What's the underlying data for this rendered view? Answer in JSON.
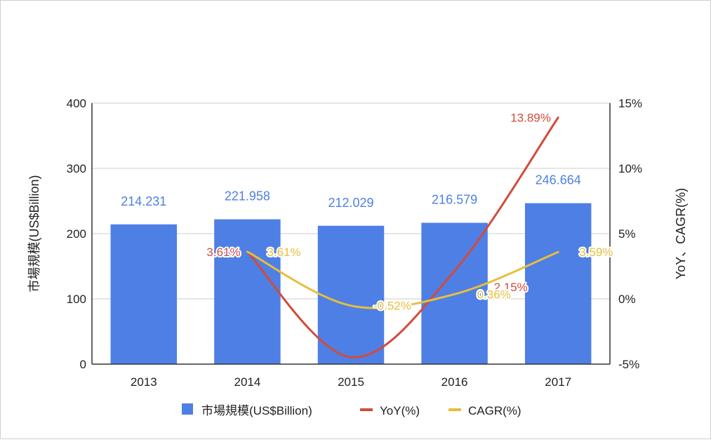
{
  "chart_data": {
    "type": "bar",
    "title": "",
    "categories": [
      "2013",
      "2014",
      "2015",
      "2016",
      "2017"
    ],
    "series": [
      {
        "name": "市場規模(US$Billion)",
        "kind": "bar",
        "axis": "left",
        "values": [
          214.231,
          221.958,
          212.029,
          216.579,
          246.664
        ],
        "labels": [
          "214.231",
          "221.958",
          "212.029",
          "216.579",
          "246.664"
        ],
        "color": "#4e7fe5"
      },
      {
        "name": "YoY(%)",
        "kind": "line",
        "axis": "right",
        "values": [
          null,
          3.61,
          -4.47,
          2.15,
          13.89
        ],
        "labels": [
          null,
          "3.61%",
          null,
          "2.15%",
          "13.89%"
        ],
        "color": "#d14b3c"
      },
      {
        "name": "CAGR(%)",
        "kind": "line",
        "axis": "right",
        "values": [
          null,
          3.61,
          -0.52,
          0.36,
          3.59
        ],
        "labels": [
          null,
          "3.61%",
          "-0.52%",
          "0.36%",
          "3.59%"
        ],
        "color": "#e8be3c"
      }
    ],
    "left_axis": {
      "label": "市場規模(US$Billion)",
      "min": 0,
      "max": 400,
      "ticks": [
        0,
        100,
        200,
        300,
        400
      ],
      "tick_labels": [
        "0",
        "100",
        "200",
        "300",
        "400"
      ]
    },
    "right_axis": {
      "label": "YoY、CAGR(%)",
      "min": -5,
      "max": 15,
      "ticks": [
        -5,
        0,
        5,
        10,
        15
      ],
      "tick_labels": [
        "-5%",
        "0%",
        "5%",
        "10%",
        "15%"
      ]
    },
    "legend_position": "bottom",
    "gridlines": true
  }
}
